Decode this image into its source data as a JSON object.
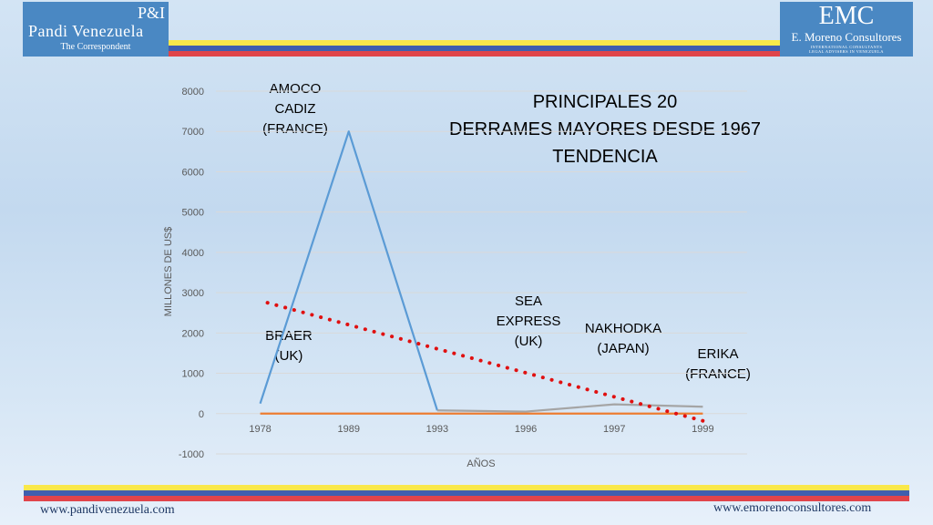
{
  "logos": {
    "left": {
      "pi": "P&I",
      "name": "Pandi Venezuela",
      "sub": "The Correspondent"
    },
    "right": {
      "emc": "EMC",
      "name": "E. Moreno Consultores",
      "tag_line1": "INTERNATIONAL CONSULTANTS",
      "tag_line2": "LEGAL ADVISERS IN VENEZUELA"
    }
  },
  "footer": {
    "left_url": "www.pandivenezuela.com",
    "right_url": "www.emorenoconsultores.com"
  },
  "colors": {
    "yellow": "#f9e84a",
    "blue": "#3f5fae",
    "red": "#e0444a",
    "logo_bg": "#4a88c3"
  },
  "chart_data": {
    "type": "line",
    "title_lines": [
      "PRINCIPALES 20",
      "DERRAMES MAYORES DESDE 1967",
      "TENDENCIA"
    ],
    "xlabel": "AÑOS",
    "ylabel": "MILLONES DE US$",
    "categories": [
      "1978",
      "1989",
      "1993",
      "1996",
      "1997",
      "1999"
    ],
    "ylim": [
      -1000,
      8000
    ],
    "yticks": [
      -1000,
      0,
      1000,
      2000,
      3000,
      4000,
      5000,
      6000,
      7000,
      8000
    ],
    "grid": true,
    "legend": "none",
    "series": [
      {
        "color": "#5b9bd5",
        "values": [
          250,
          7000,
          80,
          null,
          null,
          null
        ]
      },
      {
        "color": "#a5a5a5",
        "values": [
          null,
          null,
          80,
          50,
          230,
          170
        ]
      },
      {
        "color": "#ed7d31",
        "values": [
          0,
          0,
          0,
          0,
          0,
          0
        ]
      }
    ],
    "trendline": {
      "color": "#e01010",
      "style": "dotted",
      "start": 2750,
      "end": -180
    },
    "annotations": [
      {
        "text": [
          "AMOCO",
          "CADIZ",
          "(FRANCE)"
        ]
      },
      {
        "text": [
          "BRAER",
          "(UK)"
        ]
      },
      {
        "text": [
          "SEA",
          "EXPRESS",
          "(UK)"
        ]
      },
      {
        "text": [
          "NAKHODKA",
          "(JAPAN)"
        ]
      },
      {
        "text": [
          "ERIKA",
          "(FRANCE)"
        ]
      }
    ]
  }
}
